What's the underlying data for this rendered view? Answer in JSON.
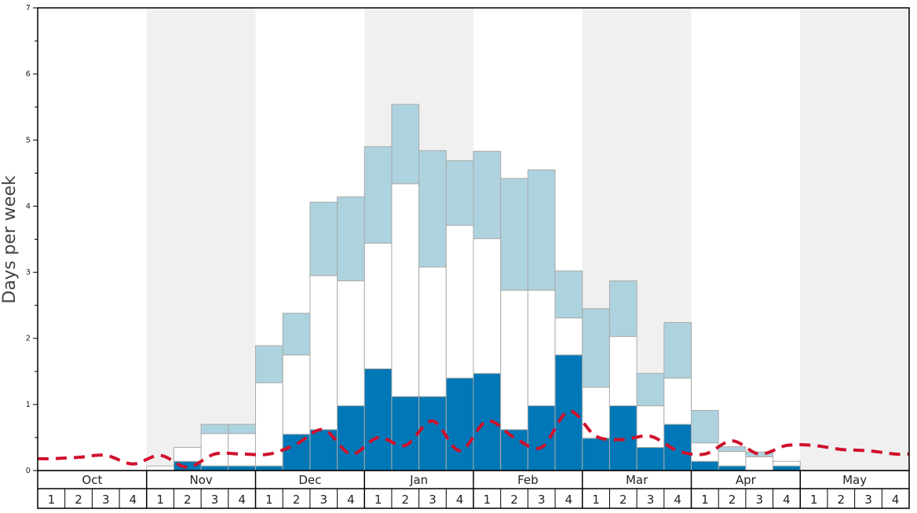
{
  "chart_data": {
    "type": "bar",
    "ylabel": "Days per week",
    "ylim": [
      0,
      7
    ],
    "yticks": [
      0,
      1,
      2,
      3,
      4,
      5,
      6,
      7
    ],
    "months": [
      "Oct",
      "Nov",
      "Dec",
      "Jan",
      "Feb",
      "Mar",
      "Apr",
      "May"
    ],
    "week_labels": [
      "1",
      "2",
      "3",
      "4"
    ],
    "stacked": true,
    "colors": {
      "bottom": "#0077b6",
      "middle": "#ffffff",
      "top": "#add3df",
      "line": "#d0102b",
      "shade": "#f0f0f0"
    },
    "series": [
      {
        "values": [
          0,
          0,
          0,
          0,
          0,
          0.14,
          0.07,
          0.07,
          0.07,
          0.55,
          0.62,
          0.98,
          1.54,
          1.12,
          1.12,
          1.4,
          1.47,
          0.62,
          0.98,
          1.75,
          0.49,
          0.98,
          0.35,
          0.7,
          0.14,
          0.07,
          0,
          0.07,
          0,
          0,
          0,
          0
        ]
      },
      {
        "values": [
          0,
          0,
          0,
          0,
          0.07,
          0.21,
          0.49,
          0.49,
          1.26,
          1.2,
          2.33,
          1.89,
          1.9,
          3.22,
          1.96,
          2.31,
          2.04,
          2.11,
          1.75,
          0.56,
          0.77,
          1.05,
          0.63,
          0.7,
          0.28,
          0.22,
          0.21,
          0.07,
          0,
          0,
          0,
          0
        ]
      },
      {
        "values": [
          0,
          0,
          0,
          0,
          0,
          0,
          0.14,
          0.14,
          0.56,
          0.63,
          1.11,
          1.27,
          1.46,
          1.2,
          1.76,
          0.98,
          1.32,
          1.69,
          1.82,
          0.71,
          1.19,
          0.84,
          0.49,
          0.84,
          0.49,
          0.07,
          0.07,
          0,
          0,
          0,
          0,
          0
        ]
      }
    ],
    "line_values": [
      0.18,
      0.2,
      0.23,
      0.1,
      0.23,
      0.05,
      0.25,
      0.25,
      0.25,
      0.4,
      0.62,
      0.25,
      0.5,
      0.38,
      0.75,
      0.3,
      0.75,
      0.5,
      0.35,
      0.9,
      0.52,
      0.47,
      0.52,
      0.3,
      0.25,
      0.45,
      0.25,
      0.38,
      0.38,
      0.32,
      0.3,
      0.25
    ]
  }
}
